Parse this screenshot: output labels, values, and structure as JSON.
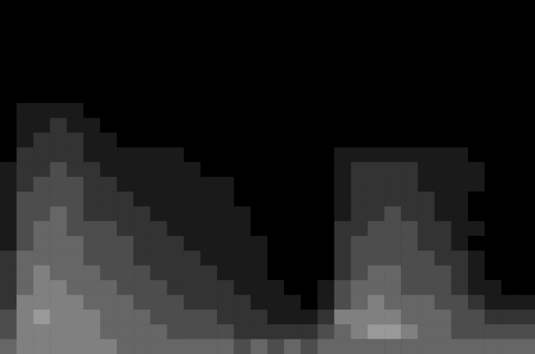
{
  "chart_data": {
    "type": "heatmap",
    "tick_labels": false,
    "grid": false,
    "zlim": [
      0,
      10
    ],
    "cells": [
      [
        0,
        0,
        0,
        0,
        0,
        0,
        0,
        0,
        0,
        0,
        0,
        0,
        0,
        0,
        0,
        0,
        0,
        0,
        0,
        0,
        0,
        0,
        0,
        0,
        0,
        0,
        0,
        0,
        0,
        0,
        0,
        0
      ],
      [
        0,
        0,
        0,
        0,
        0,
        0,
        0,
        0,
        0,
        0,
        0,
        0,
        0,
        0,
        0,
        0,
        0,
        0,
        0,
        0,
        0,
        0,
        0,
        0,
        0,
        0,
        0,
        0,
        0,
        0,
        0,
        0
      ],
      [
        0,
        0,
        0,
        0,
        0,
        0,
        0,
        0,
        0,
        0,
        0,
        0,
        0,
        0,
        0,
        0,
        0,
        0,
        0,
        0,
        0,
        0,
        0,
        0,
        0,
        0,
        0,
        0,
        0,
        0,
        0,
        0
      ],
      [
        0,
        0,
        0,
        0,
        0,
        0,
        0,
        0,
        0,
        0,
        0,
        0,
        0,
        0,
        0,
        0,
        0,
        0,
        0,
        0,
        0,
        0,
        0,
        0,
        0,
        0,
        0,
        0,
        0,
        0,
        0,
        0
      ],
      [
        0,
        0,
        0,
        0,
        0,
        0,
        0,
        0,
        0,
        0,
        0,
        0,
        0,
        0,
        0,
        0,
        0,
        0,
        0,
        0,
        0,
        0,
        0,
        0,
        0,
        0,
        0,
        0,
        0,
        0,
        0,
        0
      ],
      [
        0,
        0,
        0,
        0,
        0,
        0,
        0,
        0,
        0,
        0,
        0,
        0,
        0,
        0,
        0,
        0,
        0,
        0,
        0,
        0,
        0,
        0,
        0,
        0,
        0,
        0,
        0,
        0,
        0,
        0,
        0,
        0
      ],
      [
        0,
        0,
        0,
        0,
        0,
        0,
        0,
        0,
        0,
        0,
        0,
        0,
        0,
        0,
        0,
        0,
        0,
        0,
        0,
        0,
        0,
        0,
        0,
        0,
        0,
        0,
        0,
        0,
        0,
        0,
        0,
        0
      ],
      [
        0,
        1,
        1,
        1,
        1,
        0,
        0,
        0,
        0,
        0,
        0,
        0,
        0,
        0,
        0,
        0,
        0,
        0,
        0,
        0,
        0,
        0,
        0,
        0,
        0,
        0,
        0,
        0,
        0,
        0,
        0,
        0
      ],
      [
        0,
        1,
        1,
        2,
        1,
        1,
        0,
        0,
        0,
        0,
        0,
        0,
        0,
        0,
        0,
        0,
        0,
        0,
        0,
        0,
        0,
        0,
        0,
        0,
        0,
        0,
        0,
        0,
        0,
        0,
        0,
        0
      ],
      [
        0,
        1,
        2,
        2,
        2,
        1,
        1,
        0,
        0,
        0,
        0,
        0,
        0,
        0,
        0,
        0,
        0,
        0,
        0,
        0,
        0,
        0,
        0,
        0,
        0,
        0,
        0,
        0,
        0,
        0,
        0,
        0
      ],
      [
        0,
        2,
        2,
        2,
        2,
        1,
        1,
        1,
        1,
        1,
        1,
        0,
        0,
        0,
        0,
        0,
        0,
        0,
        0,
        0,
        1,
        1,
        1,
        1,
        1,
        1,
        1,
        1,
        0,
        0,
        0,
        0
      ],
      [
        1,
        2,
        2,
        3,
        2,
        2,
        1,
        1,
        1,
        1,
        1,
        1,
        0,
        0,
        0,
        0,
        0,
        0,
        0,
        0,
        1,
        2,
        2,
        2,
        2,
        1,
        1,
        1,
        1,
        0,
        0,
        0
      ],
      [
        1,
        2,
        3,
        3,
        3,
        2,
        2,
        1,
        1,
        1,
        1,
        1,
        1,
        1,
        0,
        0,
        0,
        0,
        0,
        0,
        1,
        2,
        2,
        2,
        2,
        1,
        1,
        1,
        1,
        0,
        0,
        0
      ],
      [
        1,
        3,
        3,
        3,
        3,
        2,
        2,
        2,
        1,
        1,
        1,
        1,
        1,
        1,
        0,
        0,
        0,
        0,
        0,
        0,
        1,
        2,
        2,
        2,
        2,
        2,
        1,
        1,
        0,
        0,
        0,
        0
      ],
      [
        1,
        3,
        3,
        4,
        3,
        2,
        2,
        2,
        2,
        1,
        1,
        1,
        1,
        1,
        1,
        0,
        0,
        0,
        0,
        0,
        1,
        2,
        2,
        3,
        2,
        2,
        1,
        1,
        0,
        0,
        0,
        0
      ],
      [
        1,
        3,
        4,
        4,
        3,
        3,
        3,
        2,
        2,
        2,
        1,
        1,
        1,
        1,
        1,
        0,
        0,
        0,
        0,
        0,
        2,
        2,
        3,
        3,
        3,
        2,
        2,
        1,
        1,
        0,
        0,
        0
      ],
      [
        1,
        3,
        4,
        4,
        4,
        3,
        3,
        3,
        2,
        2,
        2,
        1,
        1,
        1,
        1,
        1,
        0,
        0,
        0,
        0,
        2,
        3,
        3,
        3,
        3,
        2,
        2,
        1,
        0,
        0,
        0,
        0
      ],
      [
        2,
        4,
        4,
        4,
        4,
        3,
        3,
        3,
        2,
        2,
        2,
        2,
        1,
        1,
        1,
        1,
        0,
        0,
        0,
        0,
        2,
        3,
        3,
        3,
        3,
        3,
        2,
        2,
        1,
        0,
        0,
        0
      ],
      [
        2,
        4,
        5,
        4,
        4,
        4,
        3,
        3,
        3,
        2,
        2,
        2,
        2,
        1,
        1,
        1,
        0,
        0,
        0,
        0,
        2,
        3,
        4,
        4,
        3,
        3,
        3,
        2,
        1,
        0,
        0,
        0
      ],
      [
        2,
        4,
        5,
        5,
        4,
        4,
        4,
        3,
        3,
        3,
        2,
        2,
        2,
        2,
        1,
        1,
        1,
        0,
        0,
        1,
        3,
        4,
        4,
        4,
        3,
        3,
        3,
        2,
        1,
        1,
        0,
        0
      ],
      [
        2,
        5,
        5,
        5,
        5,
        4,
        4,
        4,
        3,
        3,
        3,
        2,
        2,
        2,
        2,
        1,
        1,
        1,
        0,
        1,
        3,
        4,
        5,
        4,
        4,
        4,
        3,
        3,
        2,
        1,
        1,
        1
      ],
      [
        3,
        5,
        6,
        5,
        5,
        5,
        4,
        4,
        4,
        3,
        3,
        3,
        3,
        2,
        2,
        2,
        1,
        1,
        1,
        2,
        5,
        5,
        5,
        5,
        4,
        4,
        4,
        3,
        3,
        2,
        2,
        2
      ],
      [
        3,
        5,
        5,
        5,
        5,
        5,
        4,
        4,
        4,
        4,
        3,
        3,
        3,
        3,
        2,
        2,
        2,
        2,
        2,
        3,
        4,
        5,
        6,
        6,
        5,
        4,
        4,
        3,
        3,
        3,
        3,
        3
      ],
      [
        4,
        5,
        5,
        5,
        5,
        5,
        5,
        4,
        4,
        4,
        4,
        4,
        4,
        4,
        3,
        4,
        3,
        4,
        3,
        4,
        4,
        4,
        4,
        4,
        4,
        4,
        4,
        4,
        4,
        4,
        4,
        4
      ]
    ]
  }
}
